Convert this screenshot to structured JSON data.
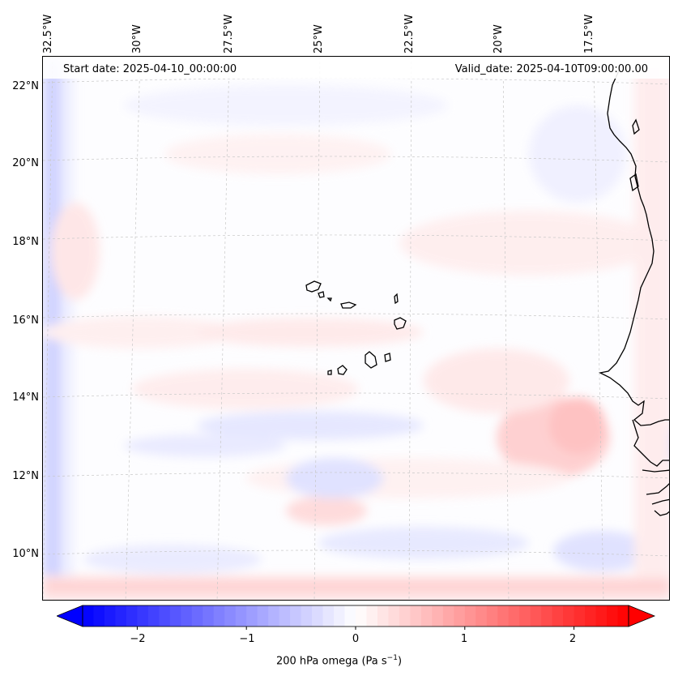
{
  "header": {
    "start_date": "Start date: 2025-04-10_00:00:00",
    "valid_date": "Valid_date: 2025-04-10T09:00:00.00"
  },
  "longitude_labels": [
    "32.5°W",
    "30°W",
    "27.5°W",
    "25°W",
    "22.5°W",
    "20°W",
    "17.5°W"
  ],
  "latitude_labels": [
    "22°N",
    "20°N",
    "18°N",
    "16°N",
    "14°N",
    "12°N",
    "10°N"
  ],
  "colorbar": {
    "label_prefix": "200 hPa omega (Pa s",
    "label_exponent": "−1",
    "label_suffix": ")",
    "ticks": [
      -2,
      -1,
      0,
      1,
      2
    ],
    "tick_labels": [
      "−2",
      "−1",
      "0",
      "1",
      "2"
    ],
    "vmin": -2.5,
    "vmax": 2.5,
    "colormap": "bwr",
    "low_color": "#0000ff",
    "mid_color": "#ffffff",
    "high_color": "#ff0000"
  },
  "map": {
    "variable": "200 hPa omega",
    "extent_lon": [
      -33,
      -15
    ],
    "extent_lat": [
      9,
      22.8
    ],
    "coastline_color": "#000000",
    "gridline_color": "#bbbbbb"
  }
}
